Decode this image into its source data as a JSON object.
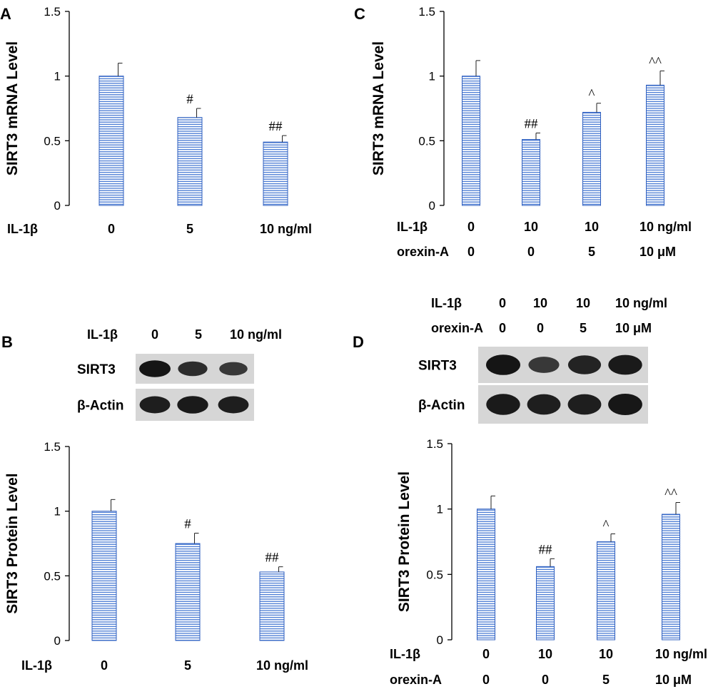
{
  "colors": {
    "bar_stroke": "#2f5fbf",
    "bar_fill": "#ffffff",
    "stripe": "#3a6fd0",
    "axis": "#000000",
    "blot_bg": "#d6d6d6",
    "band": "#151515"
  },
  "chart_data": [
    {
      "panel": "A",
      "type": "bar",
      "ylabel": "SIRT3 mRNA Level",
      "ylim": [
        0,
        1.5
      ],
      "yticks": [
        "0",
        "0.5",
        "1",
        "1.5"
      ],
      "values": [
        1.0,
        0.68,
        0.49
      ],
      "errors": [
        0.1,
        0.07,
        0.05
      ],
      "annotations": [
        "",
        "#",
        "##"
      ],
      "rows": [
        {
          "label": "IL-1β",
          "cats": [
            "0",
            "5",
            "10 ng/ml"
          ]
        }
      ]
    },
    {
      "panel": "C",
      "type": "bar",
      "ylabel": "SIRT3 mRNA Level",
      "ylim": [
        0,
        1.5
      ],
      "yticks": [
        "0",
        "0.5",
        "1",
        "1.5"
      ],
      "values": [
        1.0,
        0.51,
        0.72,
        0.93
      ],
      "errors": [
        0.12,
        0.05,
        0.07,
        0.11
      ],
      "annotations": [
        "",
        "##",
        "^",
        "^^"
      ],
      "rows": [
        {
          "label": "IL-1β",
          "cats": [
            "0",
            "10",
            "10",
            "10 ng/ml"
          ]
        },
        {
          "label": "orexin-A",
          "cats": [
            "0",
            "0",
            "5",
            "10 μM"
          ]
        }
      ]
    },
    {
      "panel": "B",
      "type": "bar",
      "ylabel": "SIRT3 Protein Level",
      "ylim": [
        0,
        1.5
      ],
      "yticks": [
        "0",
        "0.5",
        "1",
        "1.5"
      ],
      "values": [
        1.0,
        0.75,
        0.53
      ],
      "errors": [
        0.09,
        0.08,
        0.04
      ],
      "annotations": [
        "",
        "#",
        "##"
      ],
      "rows": [
        {
          "label": "IL-1β",
          "cats": [
            "0",
            "5",
            "10 ng/ml"
          ]
        }
      ]
    },
    {
      "panel": "D",
      "type": "bar",
      "ylabel": "SIRT3 Protein Level",
      "ylim": [
        0,
        1.5
      ],
      "yticks": [
        "0",
        "0.5",
        "1",
        "1.5"
      ],
      "values": [
        1.0,
        0.56,
        0.75,
        0.96
      ],
      "errors": [
        0.1,
        0.06,
        0.06,
        0.09
      ],
      "annotations": [
        "",
        "##",
        "^",
        "^^"
      ],
      "rows": [
        {
          "label": "IL-1β",
          "cats": [
            "0",
            "10",
            "10",
            "10 ng/ml"
          ]
        },
        {
          "label": "orexin-A",
          "cats": [
            "0",
            "0",
            "5",
            "10 μM"
          ]
        }
      ]
    }
  ],
  "blots": [
    {
      "panel": "B",
      "header_rows": [
        {
          "label": "IL-1β",
          "cats": [
            "0",
            "5",
            "10 ng/ml"
          ]
        }
      ],
      "bands": [
        {
          "name": "SIRT3",
          "intensity": [
            1.0,
            0.75,
            0.6
          ]
        },
        {
          "name": "β-Actin",
          "intensity": [
            0.9,
            0.95,
            0.9
          ]
        }
      ]
    },
    {
      "panel": "D",
      "header_rows": [
        {
          "label": "IL-1β",
          "cats": [
            "0",
            "10",
            "10",
            "10 ng/ml"
          ]
        },
        {
          "label": "orexin-A",
          "cats": [
            "0",
            "0",
            "5",
            "10 μM"
          ]
        }
      ],
      "bands": [
        {
          "name": "SIRT3",
          "intensity": [
            1.0,
            0.6,
            0.85,
            0.95
          ]
        },
        {
          "name": "β-Actin",
          "intensity": [
            0.95,
            0.9,
            0.9,
            0.98
          ]
        }
      ]
    }
  ]
}
